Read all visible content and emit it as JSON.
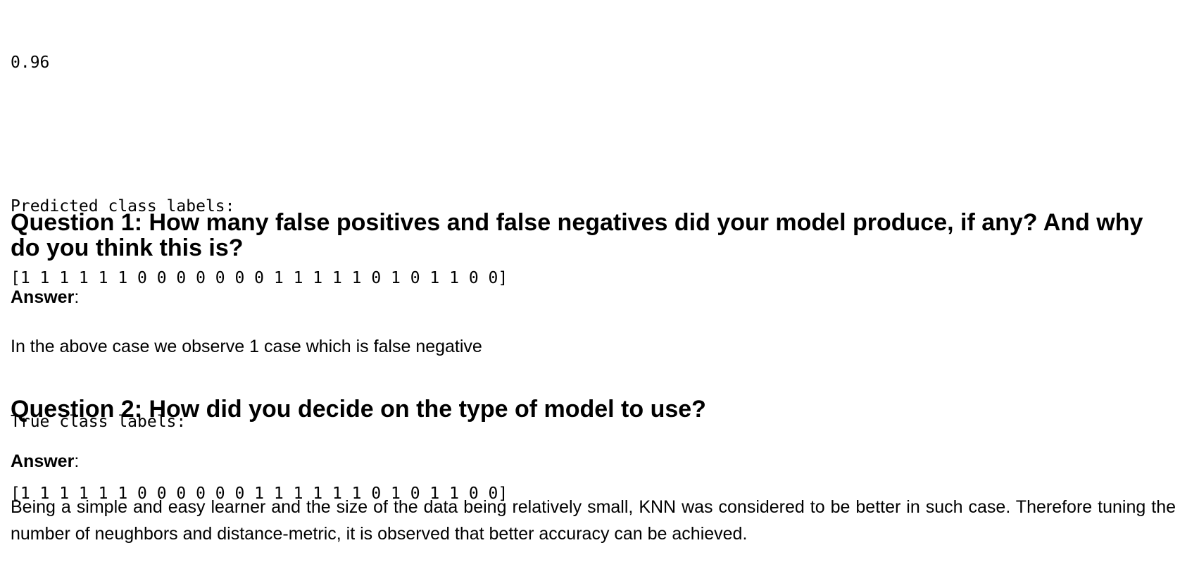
{
  "output": {
    "score": "0.96",
    "predicted_heading": "Predicted class labels:",
    "predicted_values": "[1 1 1 1 1 1 0 0 0 0 0 0 0 1 1 1 1 1 0 1 0 1 1 0 0]",
    "true_heading": "True class labels:",
    "true_values": "[1 1 1 1 1 1 0 0 0 0 0 0 1 1 1 1 1 1 0 1 0 1 1 0 0]"
  },
  "questions": [
    {
      "title": "Question 1: How many false positives and false negatives did your model produce, if any? And why do you think this is?",
      "answer_label": "Answer",
      "answer_suffix": ":",
      "answer_text": "In the above case we observe 1 case which is false negative"
    },
    {
      "title": "Question 2: How did you decide on the type of model to use?",
      "answer_label": "Answer",
      "answer_suffix": ":",
      "answer_text": "Being a simple and easy learner and the size of the data being relatively small, KNN was considered to be better in such case. Therefore tuning the number of neughbors and distance-metric, it is observed that better accuracy can be achieved."
    }
  ]
}
